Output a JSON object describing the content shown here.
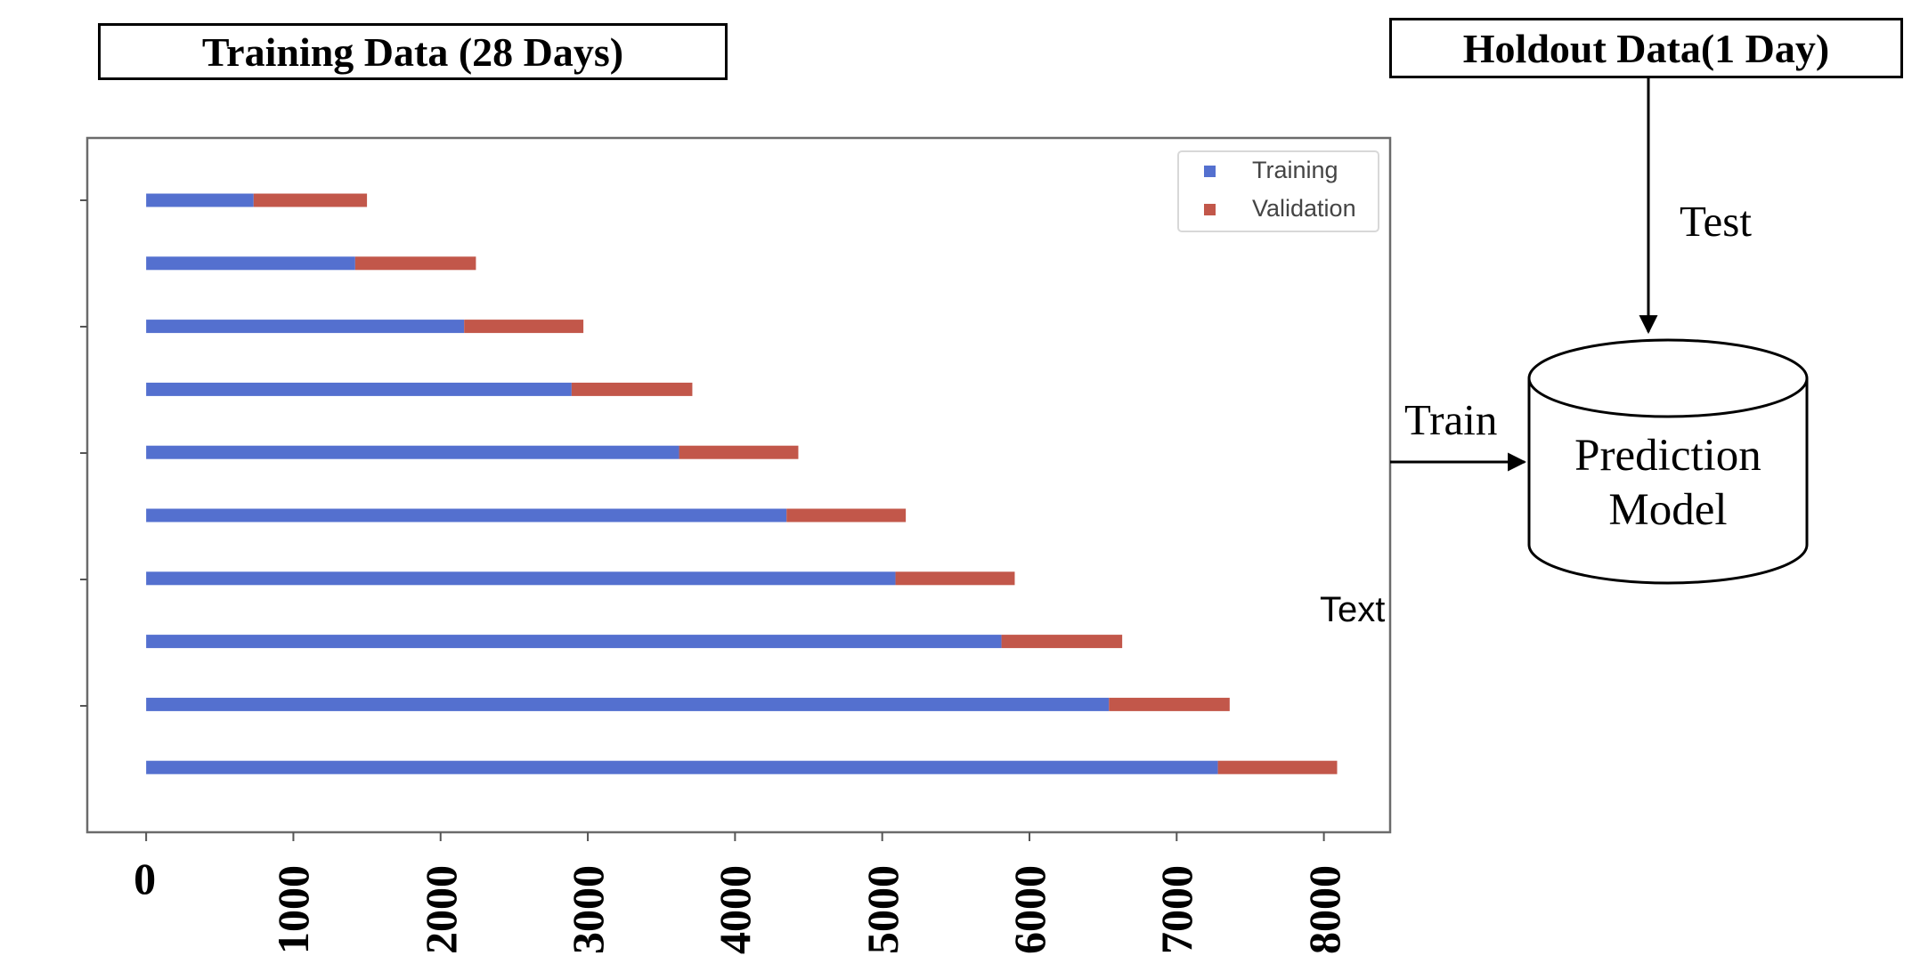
{
  "labels": {
    "training_box": "Training Data (28 Days)",
    "holdout_box": "Holdout Data(1 Day)",
    "test_arrow": "Test",
    "train_arrow": "Train",
    "model_line1": "Prediction",
    "model_line2": "Model",
    "loose_text": "Text"
  },
  "chart_data": {
    "type": "bar",
    "orientation": "horizontal-stacked",
    "legend": {
      "placement": "top-right",
      "entries": [
        "Training",
        "Validation"
      ]
    },
    "colors": {
      "Training": "#5470cf",
      "Validation": "#c2574a"
    },
    "x_ticks": [
      "0",
      "1000",
      "2000",
      "3000",
      "4000",
      "5000",
      "6000",
      "7000",
      "8000"
    ],
    "xlim": [
      -400,
      8450
    ],
    "splits": [
      {
        "train": [
          0,
          730
        ],
        "validation": [
          730,
          1500
        ]
      },
      {
        "train": [
          0,
          1420
        ],
        "validation": [
          1420,
          2240
        ]
      },
      {
        "train": [
          0,
          2160
        ],
        "validation": [
          2160,
          2970
        ]
      },
      {
        "train": [
          0,
          2890
        ],
        "validation": [
          2890,
          3710
        ]
      },
      {
        "train": [
          0,
          3620
        ],
        "validation": [
          3620,
          4430
        ]
      },
      {
        "train": [
          0,
          4350
        ],
        "validation": [
          4350,
          5160
        ]
      },
      {
        "train": [
          0,
          5090
        ],
        "validation": [
          5090,
          5900
        ]
      },
      {
        "train": [
          0,
          5810
        ],
        "validation": [
          5810,
          6630
        ]
      },
      {
        "train": [
          0,
          6540
        ],
        "validation": [
          6540,
          7360
        ]
      },
      {
        "train": [
          0,
          7280
        ],
        "validation": [
          7280,
          8090
        ]
      }
    ]
  }
}
